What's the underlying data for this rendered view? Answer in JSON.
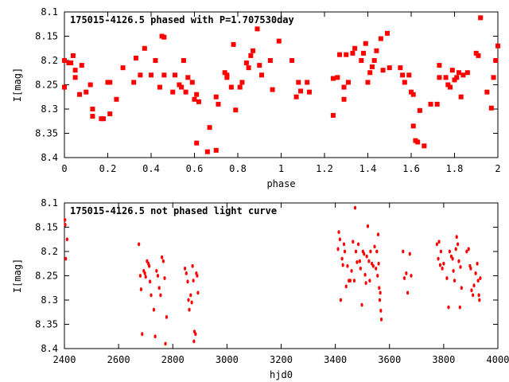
{
  "chart_data": [
    {
      "type": "scatter",
      "title": "175015-4126.5 phased with P=1.707530day",
      "xlabel": "phase",
      "ylabel": "I[mag]",
      "xlim": [
        0,
        2
      ],
      "ylim": [
        8.1,
        8.4
      ],
      "y_inverted": true,
      "x_ticks": [
        "0",
        "0.2",
        "0.4",
        "0.6",
        "0.8",
        "1",
        "1.2",
        "1.4",
        "1.6",
        "1.8",
        "2"
      ],
      "y_ticks": [
        "8.1",
        "8.15",
        "8.2",
        "8.25",
        "8.3",
        "8.35",
        "8.4"
      ],
      "grid": false,
      "marker_color": "#ff0000",
      "series": [
        {
          "points": [
            [
              0.0,
              8.2
            ],
            [
              0.0,
              8.255
            ],
            [
              0.02,
              8.205
            ],
            [
              0.03,
              8.205
            ],
            [
              0.04,
              8.19
            ],
            [
              0.05,
              8.235
            ],
            [
              0.05,
              8.22
            ],
            [
              0.07,
              8.27
            ],
            [
              0.08,
              8.21
            ],
            [
              0.1,
              8.265
            ],
            [
              0.12,
              8.25
            ],
            [
              0.13,
              8.3
            ],
            [
              0.13,
              8.315
            ],
            [
              0.17,
              8.32
            ],
            [
              0.18,
              8.32
            ],
            [
              0.2,
              8.245
            ],
            [
              0.21,
              8.245
            ],
            [
              0.21,
              8.31
            ],
            [
              0.24,
              8.28
            ],
            [
              0.27,
              8.215
            ],
            [
              0.32,
              8.245
            ],
            [
              0.33,
              8.195
            ],
            [
              0.35,
              8.23
            ],
            [
              0.37,
              8.175
            ],
            [
              0.4,
              8.23
            ],
            [
              0.42,
              8.2
            ],
            [
              0.44,
              8.255
            ],
            [
              0.45,
              8.15
            ],
            [
              0.46,
              8.152
            ],
            [
              0.46,
              8.23
            ],
            [
              0.5,
              8.265
            ],
            [
              0.51,
              8.23
            ],
            [
              0.53,
              8.25
            ],
            [
              0.54,
              8.255
            ],
            [
              0.55,
              8.2
            ],
            [
              0.56,
              8.265
            ],
            [
              0.57,
              8.235
            ],
            [
              0.59,
              8.245
            ],
            [
              0.6,
              8.28
            ],
            [
              0.61,
              8.27
            ],
            [
              0.61,
              8.37
            ],
            [
              0.62,
              8.285
            ],
            [
              0.66,
              8.388
            ],
            [
              0.67,
              8.338
            ],
            [
              0.7,
              8.385
            ],
            [
              0.7,
              8.275
            ],
            [
              0.71,
              8.29
            ],
            [
              0.74,
              8.225
            ],
            [
              0.75,
              8.235
            ],
            [
              0.75,
              8.23
            ],
            [
              0.77,
              8.255
            ],
            [
              0.78,
              8.167
            ],
            [
              0.79,
              8.302
            ],
            [
              0.81,
              8.255
            ],
            [
              0.82,
              8.245
            ],
            [
              0.84,
              8.205
            ],
            [
              0.85,
              8.215
            ],
            [
              0.86,
              8.19
            ],
            [
              0.87,
              8.18
            ],
            [
              0.89,
              8.135
            ],
            [
              0.9,
              8.21
            ],
            [
              0.91,
              8.23
            ],
            [
              0.95,
              8.2
            ],
            [
              0.96,
              8.26
            ],
            [
              0.99,
              8.16
            ],
            [
              1.05,
              8.2
            ],
            [
              1.07,
              8.275
            ],
            [
              1.08,
              8.245
            ],
            [
              1.09,
              8.263
            ],
            [
              1.12,
              8.245
            ],
            [
              1.13,
              8.265
            ],
            [
              1.24,
              8.313
            ],
            [
              1.24,
              8.237
            ],
            [
              1.26,
              8.235
            ],
            [
              1.27,
              8.188
            ],
            [
              1.29,
              8.255
            ],
            [
              1.29,
              8.28
            ],
            [
              1.3,
              8.188
            ],
            [
              1.31,
              8.245
            ],
            [
              1.33,
              8.185
            ],
            [
              1.34,
              8.175
            ],
            [
              1.37,
              8.2
            ],
            [
              1.38,
              8.185
            ],
            [
              1.39,
              8.165
            ],
            [
              1.4,
              8.245
            ],
            [
              1.41,
              8.225
            ],
            [
              1.42,
              8.213
            ],
            [
              1.43,
              8.2
            ],
            [
              1.44,
              8.18
            ],
            [
              1.46,
              8.155
            ],
            [
              1.47,
              8.22
            ],
            [
              1.49,
              8.144
            ],
            [
              1.5,
              8.215
            ],
            [
              1.55,
              8.215
            ],
            [
              1.56,
              8.23
            ],
            [
              1.57,
              8.245
            ],
            [
              1.59,
              8.23
            ],
            [
              1.6,
              8.265
            ],
            [
              1.61,
              8.27
            ],
            [
              1.61,
              8.335
            ],
            [
              1.62,
              8.365
            ],
            [
              1.63,
              8.368
            ],
            [
              1.64,
              8.303
            ],
            [
              1.66,
              8.376
            ],
            [
              1.69,
              8.29
            ],
            [
              1.72,
              8.29
            ],
            [
              1.73,
              8.21
            ],
            [
              1.73,
              8.235
            ],
            [
              1.76,
              8.235
            ],
            [
              1.77,
              8.25
            ],
            [
              1.78,
              8.255
            ],
            [
              1.79,
              8.22
            ],
            [
              1.8,
              8.24
            ],
            [
              1.81,
              8.235
            ],
            [
              1.82,
              8.225
            ],
            [
              1.83,
              8.275
            ],
            [
              1.84,
              8.23
            ],
            [
              1.86,
              8.225
            ],
            [
              1.9,
              8.185
            ],
            [
              1.91,
              8.19
            ],
            [
              1.92,
              8.112
            ],
            [
              1.95,
              8.265
            ],
            [
              1.97,
              8.298
            ],
            [
              1.98,
              8.235
            ],
            [
              1.99,
              8.2
            ],
            [
              2.0,
              8.17
            ]
          ]
        }
      ]
    },
    {
      "type": "scatter",
      "title": "175015-4126.5 not phased light curve",
      "xlabel": "hjd0",
      "ylabel": "I[mag]",
      "xlim": [
        2400,
        4000
      ],
      "ylim": [
        8.1,
        8.4
      ],
      "y_inverted": true,
      "x_ticks": [
        "2400",
        "2600",
        "2800",
        "3000",
        "3200",
        "3400",
        "3600",
        "3800",
        "4000"
      ],
      "y_ticks": [
        "8.1",
        "8.15",
        "8.2",
        "8.25",
        "8.3",
        "8.35",
        "8.4"
      ],
      "grid": false,
      "marker_color": "#ff0000",
      "series": [
        {
          "points": [
            [
              2402,
              8.135
            ],
            [
              2403,
              8.145
            ],
            [
              2405,
              8.215
            ],
            [
              2410,
              8.175
            ],
            [
              2675,
              8.185
            ],
            [
              2680,
              8.25
            ],
            [
              2683,
              8.278
            ],
            [
              2687,
              8.37
            ],
            [
              2693,
              8.24
            ],
            [
              2697,
              8.245
            ],
            [
              2700,
              8.252
            ],
            [
              2705,
              8.22
            ],
            [
              2710,
              8.225
            ],
            [
              2713,
              8.23
            ],
            [
              2716,
              8.262
            ],
            [
              2720,
              8.29
            ],
            [
              2730,
              8.32
            ],
            [
              2735,
              8.375
            ],
            [
              2740,
              8.24
            ],
            [
              2745,
              8.25
            ],
            [
              2750,
              8.275
            ],
            [
              2755,
              8.29
            ],
            [
              2760,
              8.212
            ],
            [
              2765,
              8.22
            ],
            [
              2770,
              8.255
            ],
            [
              2773,
              8.39
            ],
            [
              2777,
              8.335
            ],
            [
              2845,
              8.235
            ],
            [
              2850,
              8.245
            ],
            [
              2855,
              8.262
            ],
            [
              2858,
              8.3
            ],
            [
              2861,
              8.32
            ],
            [
              2866,
              8.29
            ],
            [
              2870,
              8.305
            ],
            [
              2873,
              8.23
            ],
            [
              2876,
              8.26
            ],
            [
              2878,
              8.385
            ],
            [
              2880,
              8.365
            ],
            [
              2884,
              8.37
            ],
            [
              2887,
              8.245
            ],
            [
              2890,
              8.25
            ],
            [
              2893,
              8.285
            ],
            [
              3410,
              8.195
            ],
            [
              3413,
              8.16
            ],
            [
              3417,
              8.175
            ],
            [
              3420,
              8.3
            ],
            [
              3425,
              8.215
            ],
            [
              3428,
              8.228
            ],
            [
              3432,
              8.185
            ],
            [
              3435,
              8.2
            ],
            [
              3440,
              8.272
            ],
            [
              3445,
              8.23
            ],
            [
              3450,
              8.26
            ],
            [
              3455,
              8.26
            ],
            [
              3460,
              8.24
            ],
            [
              3465,
              8.18
            ],
            [
              3470,
              8.26
            ],
            [
              3473,
              8.11
            ],
            [
              3476,
              8.2
            ],
            [
              3480,
              8.222
            ],
            [
              3485,
              8.185
            ],
            [
              3490,
              8.22
            ],
            [
              3493,
              8.235
            ],
            [
              3498,
              8.31
            ],
            [
              3502,
              8.2
            ],
            [
              3506,
              8.205
            ],
            [
              3510,
              8.248
            ],
            [
              3513,
              8.265
            ],
            [
              3516,
              8.21
            ],
            [
              3520,
              8.148
            ],
            [
              3524,
              8.22
            ],
            [
              3527,
              8.26
            ],
            [
              3530,
              8.2
            ],
            [
              3535,
              8.225
            ],
            [
              3540,
              8.23
            ],
            [
              3545,
              8.19
            ],
            [
              3550,
              8.235
            ],
            [
              3553,
              8.2
            ],
            [
              3556,
              8.25
            ],
            [
              3558,
              8.165
            ],
            [
              3560,
              8.225
            ],
            [
              3562,
              8.275
            ],
            [
              3564,
              8.3
            ],
            [
              3566,
              8.285
            ],
            [
              3568,
              8.322
            ],
            [
              3570,
              8.34
            ],
            [
              3650,
              8.2
            ],
            [
              3655,
              8.255
            ],
            [
              3662,
              8.245
            ],
            [
              3667,
              8.285
            ],
            [
              3675,
              8.205
            ],
            [
              3680,
              8.25
            ],
            [
              3775,
              8.185
            ],
            [
              3780,
              8.215
            ],
            [
              3783,
              8.18
            ],
            [
              3787,
              8.228
            ],
            [
              3790,
              8.2
            ],
            [
              3795,
              8.235
            ],
            [
              3800,
              8.225
            ],
            [
              3812,
              8.255
            ],
            [
              3818,
              8.315
            ],
            [
              3822,
              8.2
            ],
            [
              3828,
              8.21
            ],
            [
              3833,
              8.215
            ],
            [
              3836,
              8.24
            ],
            [
              3840,
              8.26
            ],
            [
              3845,
              8.195
            ],
            [
              3848,
              8.17
            ],
            [
              3852,
              8.185
            ],
            [
              3856,
              8.22
            ],
            [
              3860,
              8.315
            ],
            [
              3862,
              8.232
            ],
            [
              3866,
              8.275
            ],
            [
              3885,
              8.2
            ],
            [
              3892,
              8.195
            ],
            [
              3897,
              8.23
            ],
            [
              3900,
              8.235
            ],
            [
              3903,
              8.28
            ],
            [
              3908,
              8.29
            ],
            [
              3912,
              8.27
            ],
            [
              3918,
              8.245
            ],
            [
              3924,
              8.225
            ],
            [
              3927,
              8.26
            ],
            [
              3930,
              8.29
            ],
            [
              3932,
              8.3
            ],
            [
              3935,
              8.255
            ]
          ]
        }
      ]
    }
  ]
}
